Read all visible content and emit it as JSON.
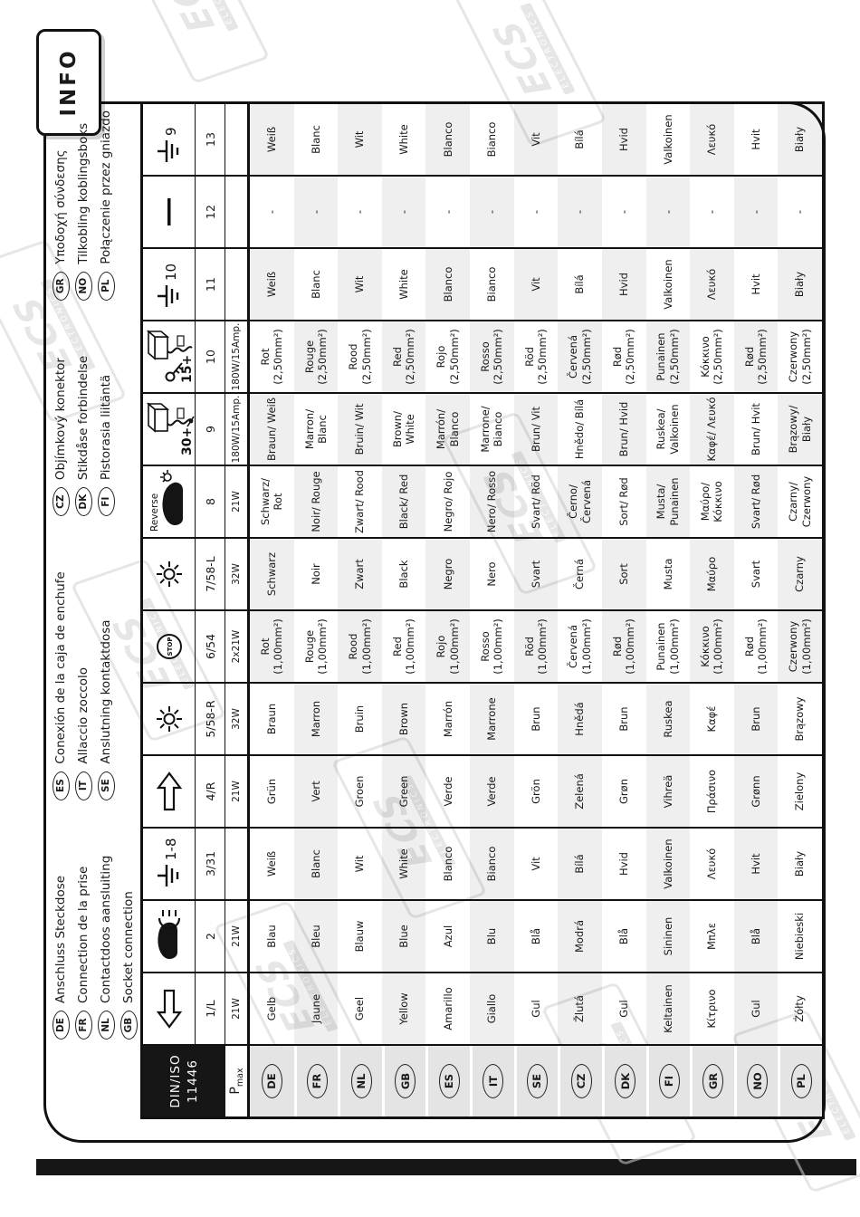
{
  "page": {
    "info_tab": "INFO"
  },
  "watermark": {
    "brand": "ECS",
    "sub": "ELECTRONICS"
  },
  "legend": {
    "groups": [
      [
        {
          "code": "DE",
          "text": "Anschluss Steckdose"
        },
        {
          "code": "FR",
          "text": "Connection de la prise"
        },
        {
          "code": "NL",
          "text": "Contactdoos aansluiting"
        },
        {
          "code": "GB",
          "text": "Socket connection"
        }
      ],
      [
        {
          "code": "ES",
          "text": "Conexión de la caja de enchufe"
        },
        {
          "code": "IT",
          "text": "Allaccio zoccolo"
        },
        {
          "code": "SE",
          "text": "Anslutning kontaktdosa"
        }
      ],
      [
        {
          "code": "CZ",
          "text": "Objímkový konektor"
        },
        {
          "code": "DK",
          "text": "Stikdåse forbindelse"
        },
        {
          "code": "FI",
          "text": "Pistorasia liitäntä"
        }
      ],
      [
        {
          "code": "GR",
          "text": "Υποδοχή σύνδεσης"
        },
        {
          "code": "NO",
          "text": "Tilkobling koblingsboks"
        },
        {
          "code": "PL",
          "text": "Połączenie przez gniazdo"
        }
      ]
    ]
  },
  "table": {
    "standard": {
      "line1": "DIN/ISO",
      "line2": "11446"
    },
    "pmax_label": {
      "main": "P",
      "sub": "max"
    },
    "columns": [
      {
        "icon": "arrow-left-icon",
        "icon_label": "",
        "number": "1/L",
        "pmax": "21W",
        "shade": "odd"
      },
      {
        "icon": "rear-fog-light-icon",
        "icon_label": "",
        "number": "2",
        "pmax": "21W",
        "shade": "odd"
      },
      {
        "icon": "ground-icon",
        "icon_label": "1-8",
        "number": "3/31",
        "pmax": "",
        "shade": "odd"
      },
      {
        "icon": "arrow-right-icon",
        "icon_label": "",
        "number": "4/R",
        "pmax": "21W",
        "shade": "odd"
      },
      {
        "icon": "tail-lamp-icon",
        "icon_label": "",
        "number": "5/58-R",
        "pmax": "32W",
        "shade": "odd"
      },
      {
        "icon": "stop-lamp-icon",
        "icon_label": "STOP",
        "number": "6/54",
        "pmax": "2x21W",
        "shade": "even"
      },
      {
        "icon": "tail-lamp-icon",
        "icon_label": "",
        "number": "7/58-L",
        "pmax": "32W",
        "shade": "even"
      },
      {
        "icon": "reverse-lamp-icon",
        "icon_label": "Reverse",
        "number": "8",
        "pmax": "21W",
        "shade": "odd"
      },
      {
        "icon": "battery-permanent-icon",
        "icon_label": "30+",
        "number": "9",
        "pmax": "180W/15Amp.",
        "shade": "even"
      },
      {
        "icon": "battery-ignition-icon",
        "icon_label": "15+",
        "number": "10",
        "pmax": "180W/15Amp.",
        "shade": "odd"
      },
      {
        "icon": "ground-icon",
        "icon_label": "10",
        "number": "11",
        "pmax": "",
        "shade": "even"
      },
      {
        "icon": "dash-icon",
        "icon_label": "",
        "number": "12",
        "pmax": "",
        "shade": "odd"
      },
      {
        "icon": "ground-icon",
        "icon_label": "9",
        "number": "13",
        "pmax": "",
        "shade": "even"
      }
    ],
    "rows": [
      {
        "code": "DE",
        "colors": [
          "Gelb",
          "Blau",
          "Weiß",
          "Grün",
          "Braun",
          "Rot (1,00mm²)",
          "Schwarz",
          "Schwarz/ Rot",
          "Braun/ Weiß",
          "Rot (2,50mm²)",
          "Weiß",
          "-",
          "Weiß"
        ]
      },
      {
        "code": "FR",
        "colors": [
          "Jaune",
          "Bleu",
          "Blanc",
          "Vert",
          "Marron",
          "Rouge (1,00mm²)",
          "Noir",
          "Noir/ Rouge",
          "Marron/ Blanc",
          "Rouge (2,50mm²)",
          "Blanc",
          "-",
          "Blanc"
        ]
      },
      {
        "code": "NL",
        "colors": [
          "Geel",
          "Blauw",
          "Wit",
          "Groen",
          "Bruin",
          "Rood (1,00mm²)",
          "Zwart",
          "Zwart/ Rood",
          "Bruin/ Wit",
          "Rood (2,50mm²)",
          "Wit",
          "-",
          "Wit"
        ]
      },
      {
        "code": "GB",
        "colors": [
          "Yellow",
          "Blue",
          "White",
          "Green",
          "Brown",
          "Red (1,00mm²)",
          "Black",
          "Black/ Red",
          "Brown/ White",
          "Red (2,50mm²)",
          "White",
          "-",
          "White"
        ]
      },
      {
        "code": "ES",
        "colors": [
          "Amarillo",
          "Azul",
          "Blanco",
          "Verde",
          "Marrón",
          "Rojo (1,00mm²)",
          "Negro",
          "Negro/ Rojo",
          "Marrón/ Blanco",
          "Rojo (2,50mm²)",
          "Blanco",
          "-",
          "Blanco"
        ]
      },
      {
        "code": "IT",
        "colors": [
          "Giallo",
          "Blu",
          "Bianco",
          "Verde",
          "Marrone",
          "Rosso (1,00mm²)",
          "Nero",
          "Nero/ Rosso",
          "Marrone/ Bianco",
          "Rosso (2,50mm²)",
          "Bianco",
          "-",
          "Bianco"
        ]
      },
      {
        "code": "SE",
        "colors": [
          "Gul",
          "Blå",
          "Vit",
          "Grön",
          "Brun",
          "Röd (1,00mm²)",
          "Svart",
          "Svart/ Röd",
          "Brun/ Vit",
          "Röd (2,50mm²)",
          "Vit",
          "-",
          "Vit"
        ]
      },
      {
        "code": "CZ",
        "colors": [
          "Žlutá",
          "Modrá",
          "Bílá",
          "Zelená",
          "Hnědá",
          "Červená (1,00mm²)",
          "Černá",
          "Černo/ Červená",
          "Hnědo/ Bílá",
          "Červená (2,50mm²)",
          "Bílá",
          "-",
          "Bílá"
        ]
      },
      {
        "code": "DK",
        "colors": [
          "Gul",
          "Blå",
          "Hvid",
          "Grøn",
          "Brun",
          "Rød (1,00mm²)",
          "Sort",
          "Sort/ Rød",
          "Brun/ Hvid",
          "Rød (2,50mm²)",
          "Hvid",
          "-",
          "Hvid"
        ]
      },
      {
        "code": "FI",
        "colors": [
          "Keltainen",
          "Sininen",
          "Valkoinen",
          "Vihreä",
          "Ruskea",
          "Punainen (1,00mm²)",
          "Musta",
          "Musta/ Punainen",
          "Ruskea/ Valkoinen",
          "Punainen (2,50mm²)",
          "Valkoinen",
          "-",
          "Valkoinen"
        ]
      },
      {
        "code": "GR",
        "colors": [
          "Κίτρινο",
          "Μπλε",
          "Λευκό",
          "Πράσινο",
          "Καφέ",
          "Κόκκινο (1,00mm²)",
          "Μαύρο",
          "Μαύρο/ Κόκκινο",
          "Καφέ/ Λευκό",
          "Κόκκινο (2,50mm²)",
          "Λευκό",
          "-",
          "Λευκό"
        ]
      },
      {
        "code": "NO",
        "colors": [
          "Gul",
          "Blå",
          "Hvit",
          "Grønn",
          "Brun",
          "Rød (1,00mm²)",
          "Svart",
          "Svart/ Rød",
          "Brun/ Hvit",
          "Rød (2,50mm²)",
          "Hvit",
          "-",
          "Hvit"
        ]
      },
      {
        "code": "PL",
        "colors": [
          "Żółty",
          "Niebieski",
          "Biały",
          "Zielony",
          "Brązowy",
          "Czerwony (1,00mm²)",
          "Czarny",
          "Czarny/ Czerwony",
          "Brązowy/ Biały",
          "Czerwony (2,50mm²)",
          "Biały",
          "-",
          "Biały"
        ]
      }
    ]
  }
}
